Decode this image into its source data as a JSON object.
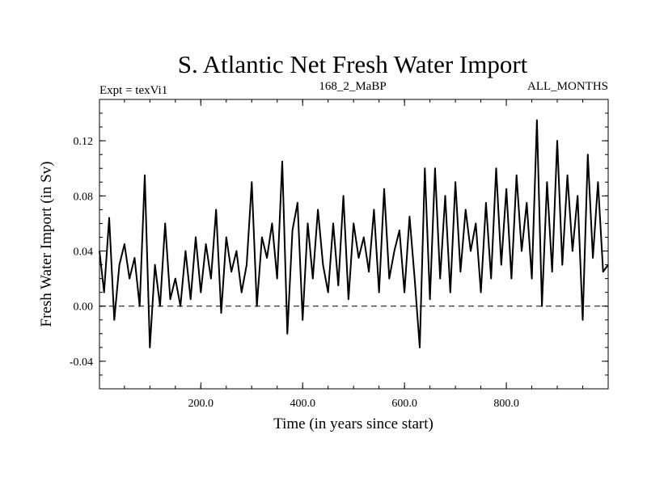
{
  "chart_data": {
    "type": "line",
    "title": "S. Atlantic Net Fresh Water Import",
    "subtitle_left": "Expt = texVi1",
    "subtitle_center": "168_2_MaBP",
    "subtitle_right": "ALL_MONTHS",
    "xlabel": "Time (in years since start)",
    "ylabel": "Fresh Water Import (in Sv)",
    "xlim": [
      1,
      1000
    ],
    "ylim": [
      -0.06,
      0.15
    ],
    "xticks": [
      200,
      400,
      600,
      800
    ],
    "xtick_labels": [
      "200.0",
      "400.0",
      "600.0",
      "800.0"
    ],
    "yticks": [
      -0.04,
      0.0,
      0.04,
      0.08,
      0.12
    ],
    "ytick_labels": [
      "-0.04",
      "0.00",
      "0.04",
      "0.08",
      "0.12"
    ],
    "reference_line": {
      "y": 0.0,
      "style": "dashed"
    },
    "series": [
      {
        "name": "Net fresh water import",
        "x": [
          1,
          10,
          20,
          30,
          40,
          50,
          60,
          70,
          80,
          90,
          100,
          110,
          120,
          130,
          140,
          150,
          160,
          170,
          180,
          190,
          200,
          210,
          220,
          230,
          240,
          250,
          260,
          270,
          280,
          290,
          300,
          310,
          320,
          330,
          340,
          350,
          360,
          370,
          380,
          390,
          400,
          410,
          420,
          430,
          440,
          450,
          460,
          470,
          480,
          490,
          500,
          510,
          520,
          530,
          540,
          550,
          560,
          570,
          580,
          590,
          600,
          610,
          620,
          630,
          640,
          650,
          660,
          670,
          680,
          690,
          700,
          710,
          720,
          730,
          740,
          750,
          760,
          770,
          780,
          790,
          800,
          810,
          820,
          830,
          840,
          850,
          860,
          870,
          880,
          890,
          900,
          910,
          920,
          930,
          940,
          950,
          960,
          970,
          980,
          990,
          1000
        ],
        "values": [
          0.04,
          0.01,
          0.064,
          -0.01,
          0.03,
          0.045,
          0.02,
          0.035,
          0.0,
          0.095,
          -0.03,
          0.03,
          0.0,
          0.06,
          0.005,
          0.02,
          0.0,
          0.04,
          0.005,
          0.05,
          0.01,
          0.045,
          0.02,
          0.07,
          -0.005,
          0.05,
          0.025,
          0.04,
          0.01,
          0.03,
          0.09,
          0.0,
          0.05,
          0.035,
          0.06,
          0.02,
          0.105,
          -0.02,
          0.055,
          0.075,
          -0.01,
          0.06,
          0.02,
          0.07,
          0.03,
          0.01,
          0.06,
          0.015,
          0.08,
          0.005,
          0.06,
          0.035,
          0.05,
          0.025,
          0.07,
          0.01,
          0.085,
          0.02,
          0.04,
          0.055,
          0.01,
          0.065,
          0.02,
          -0.03,
          0.1,
          0.005,
          0.1,
          0.02,
          0.08,
          0.01,
          0.09,
          0.025,
          0.07,
          0.04,
          0.06,
          0.01,
          0.075,
          0.02,
          0.1,
          0.03,
          0.085,
          0.02,
          0.095,
          0.04,
          0.075,
          0.02,
          0.135,
          0.0,
          0.09,
          0.025,
          0.12,
          0.03,
          0.095,
          0.04,
          0.08,
          -0.01,
          0.11,
          0.035,
          0.09,
          0.025,
          0.03
        ]
      }
    ]
  }
}
